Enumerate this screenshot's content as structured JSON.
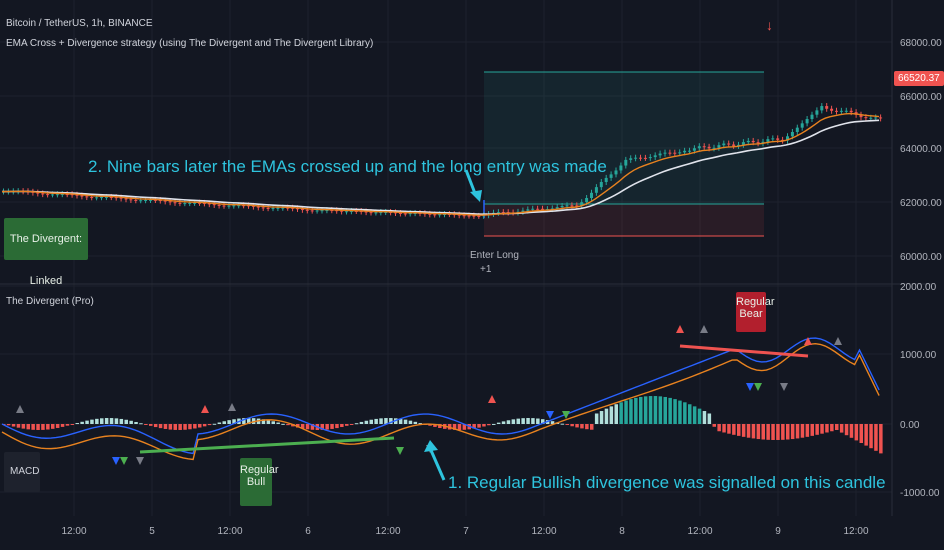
{
  "header": {
    "symbol": "Bitcoin / TetherUS, 1h, BINANCE",
    "strategy": "EMA Cross + Divergence strategy (using The Divergent and The Divergent Library)",
    "status_label": "The Divergent: Linked"
  },
  "price_axis": {
    "ticks": [
      "68000.00",
      "66000.00",
      "64000.00",
      "62000.00",
      "60000.00"
    ],
    "last_price": "66520.37"
  },
  "osc_panel": {
    "title": "The Divergent (Pro)",
    "indicator": "MACD",
    "ticks": [
      "2000.00",
      "1000.00",
      "0.00",
      "-1000.00"
    ]
  },
  "time_axis": [
    "12:00",
    "5",
    "12:00",
    "6",
    "12:00",
    "7",
    "12:00",
    "8",
    "12:00",
    "9",
    "12:00"
  ],
  "trade": {
    "entry_label": "Enter Long",
    "entry_qty": "+1"
  },
  "divergences": {
    "bull": {
      "line1": "Regular",
      "line2": "Bull"
    },
    "bear": {
      "line1": "Regular",
      "line2": "Bear"
    }
  },
  "annotations": {
    "note2": "2. Nine bars later the EMAs crossed up and the long entry was made",
    "note1": "1. Regular Bullish divergence was signalled on this candle"
  },
  "colors": {
    "bull": "#26a69a",
    "bear": "#ef5350",
    "ema_fast": "#e8821f",
    "ema_slow": "#e0e3eb",
    "annotation": "#2ec4de",
    "macd": "#2962ff"
  }
}
